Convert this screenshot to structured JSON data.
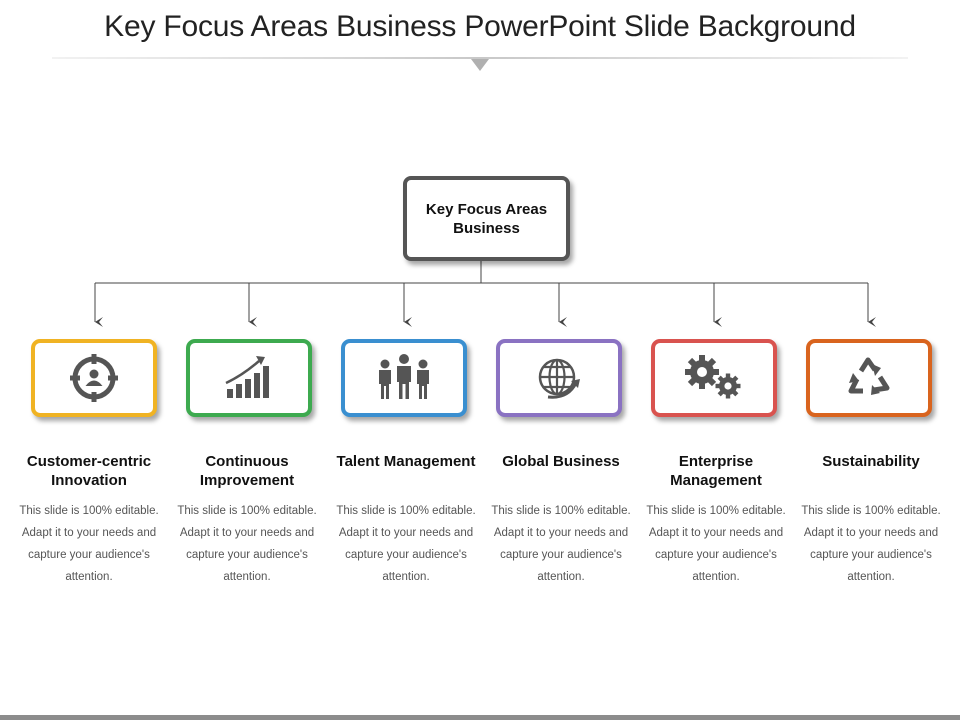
{
  "slide": {
    "title": "Key Focus Areas Business PowerPoint Slide Background"
  },
  "root": {
    "label": "Key Focus Areas Business",
    "border_color": "#555555"
  },
  "areas": [
    {
      "label": "Customer-centric Innovation",
      "description": "This slide is 100% editable. Adapt it to your needs and capture your audience's attention.",
      "color": "#F0B323",
      "icon": "target-person-icon"
    },
    {
      "label": "Continuous Improvement",
      "description": "This slide is 100% editable. Adapt it to your needs and capture your audience's attention.",
      "color": "#3DAA4F",
      "icon": "growth-chart-icon"
    },
    {
      "label": "Talent Management",
      "description": "This slide is 100% editable. Adapt it to your needs and capture your audience's attention.",
      "color": "#3A8FD0",
      "icon": "people-icon"
    },
    {
      "label": "Global Business",
      "description": "This slide is 100% editable. Adapt it to your needs and capture your audience's attention.",
      "color": "#8A72C2",
      "icon": "globe-arrow-icon"
    },
    {
      "label": "Enterprise Management",
      "description": "This slide is 100% editable. Adapt it to your needs and capture your audience's attention.",
      "color": "#D9534F",
      "icon": "gears-icon"
    },
    {
      "label": "Sustainability",
      "description": "This slide is 100% editable. Adapt it to your needs and capture your audience's attention.",
      "color": "#D9641E",
      "icon": "recycle-icon"
    }
  ]
}
